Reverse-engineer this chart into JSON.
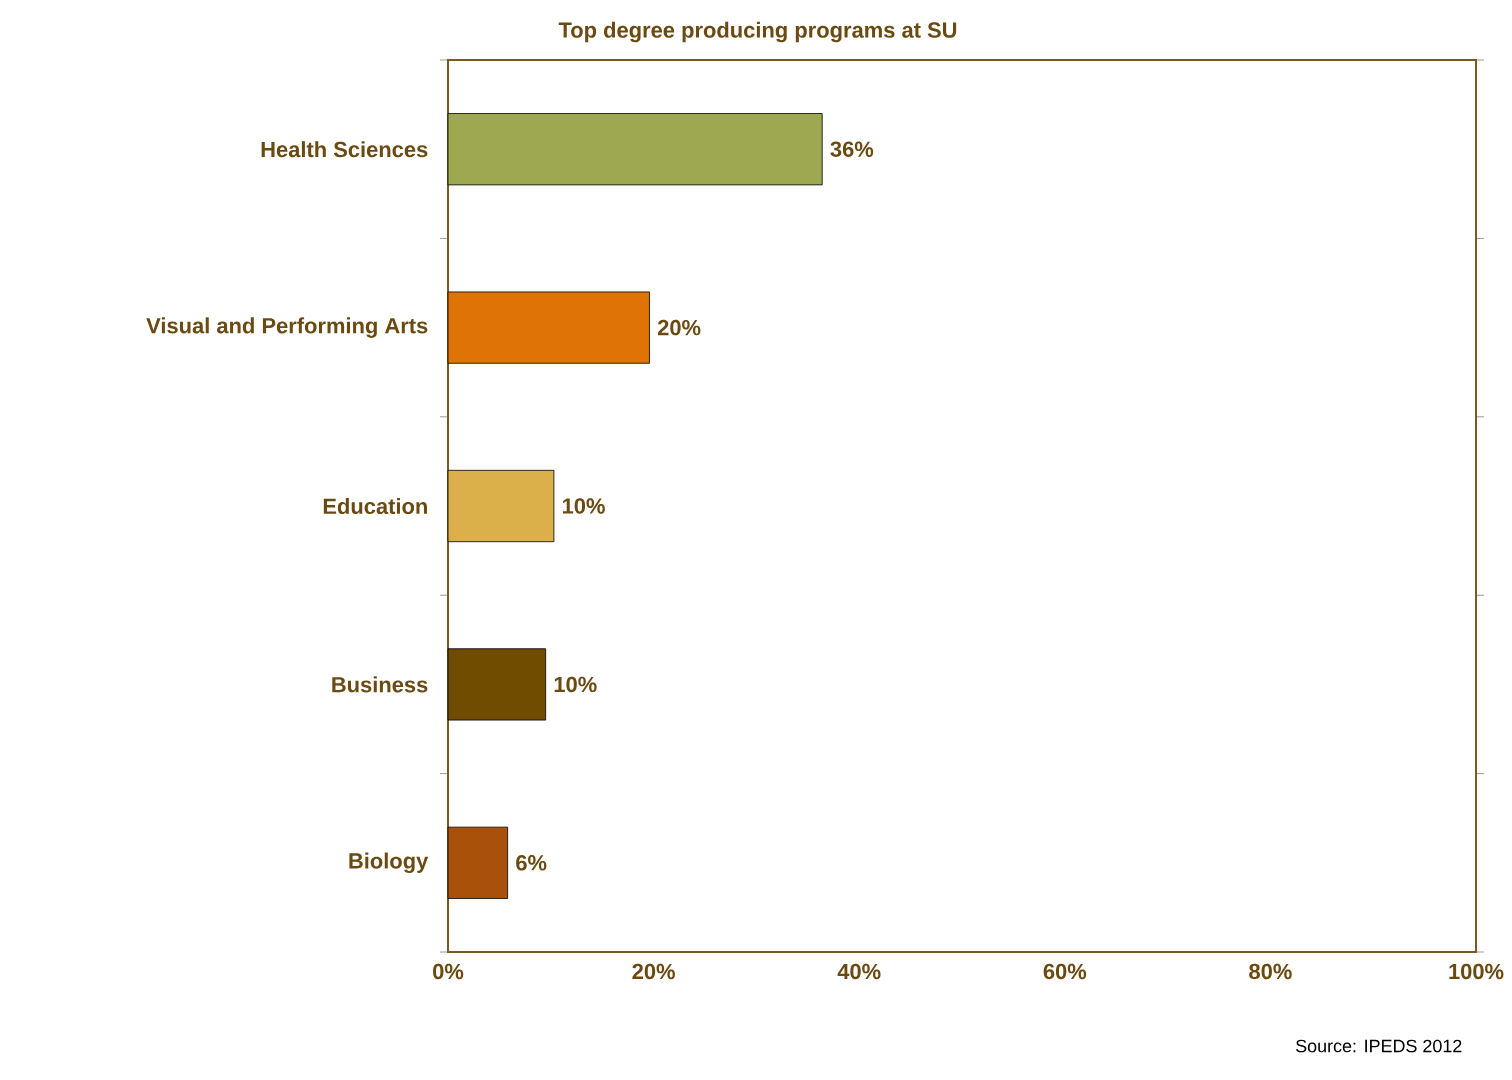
{
  "chart_data": {
    "type": "bar",
    "orientation": "horizontal",
    "title": "Top degree producing programs at SU",
    "categories": [
      "Health Sciences",
      "Visual and Performing Arts",
      "Education",
      "Business",
      "Biology"
    ],
    "values": [
      36.4,
      19.6,
      10.3,
      9.5,
      5.8
    ],
    "value_labels": [
      "36%",
      "20%",
      "10%",
      "10%",
      "6%"
    ],
    "colors": [
      "#9ea851",
      "#e07306",
      "#dbb04a",
      "#704c00",
      "#a9510a"
    ],
    "xlim": [
      0,
      100
    ],
    "xticks": [
      {
        "value": 0,
        "label": "0%"
      },
      {
        "value": 20,
        "label": "20%"
      },
      {
        "value": 40,
        "label": "40%"
      },
      {
        "value": 60,
        "label": "60%"
      },
      {
        "value": 80,
        "label": "80%"
      },
      {
        "value": 100,
        "label": "100%"
      }
    ],
    "annotations": [
      "Source: IPEDS 2012"
    ]
  }
}
